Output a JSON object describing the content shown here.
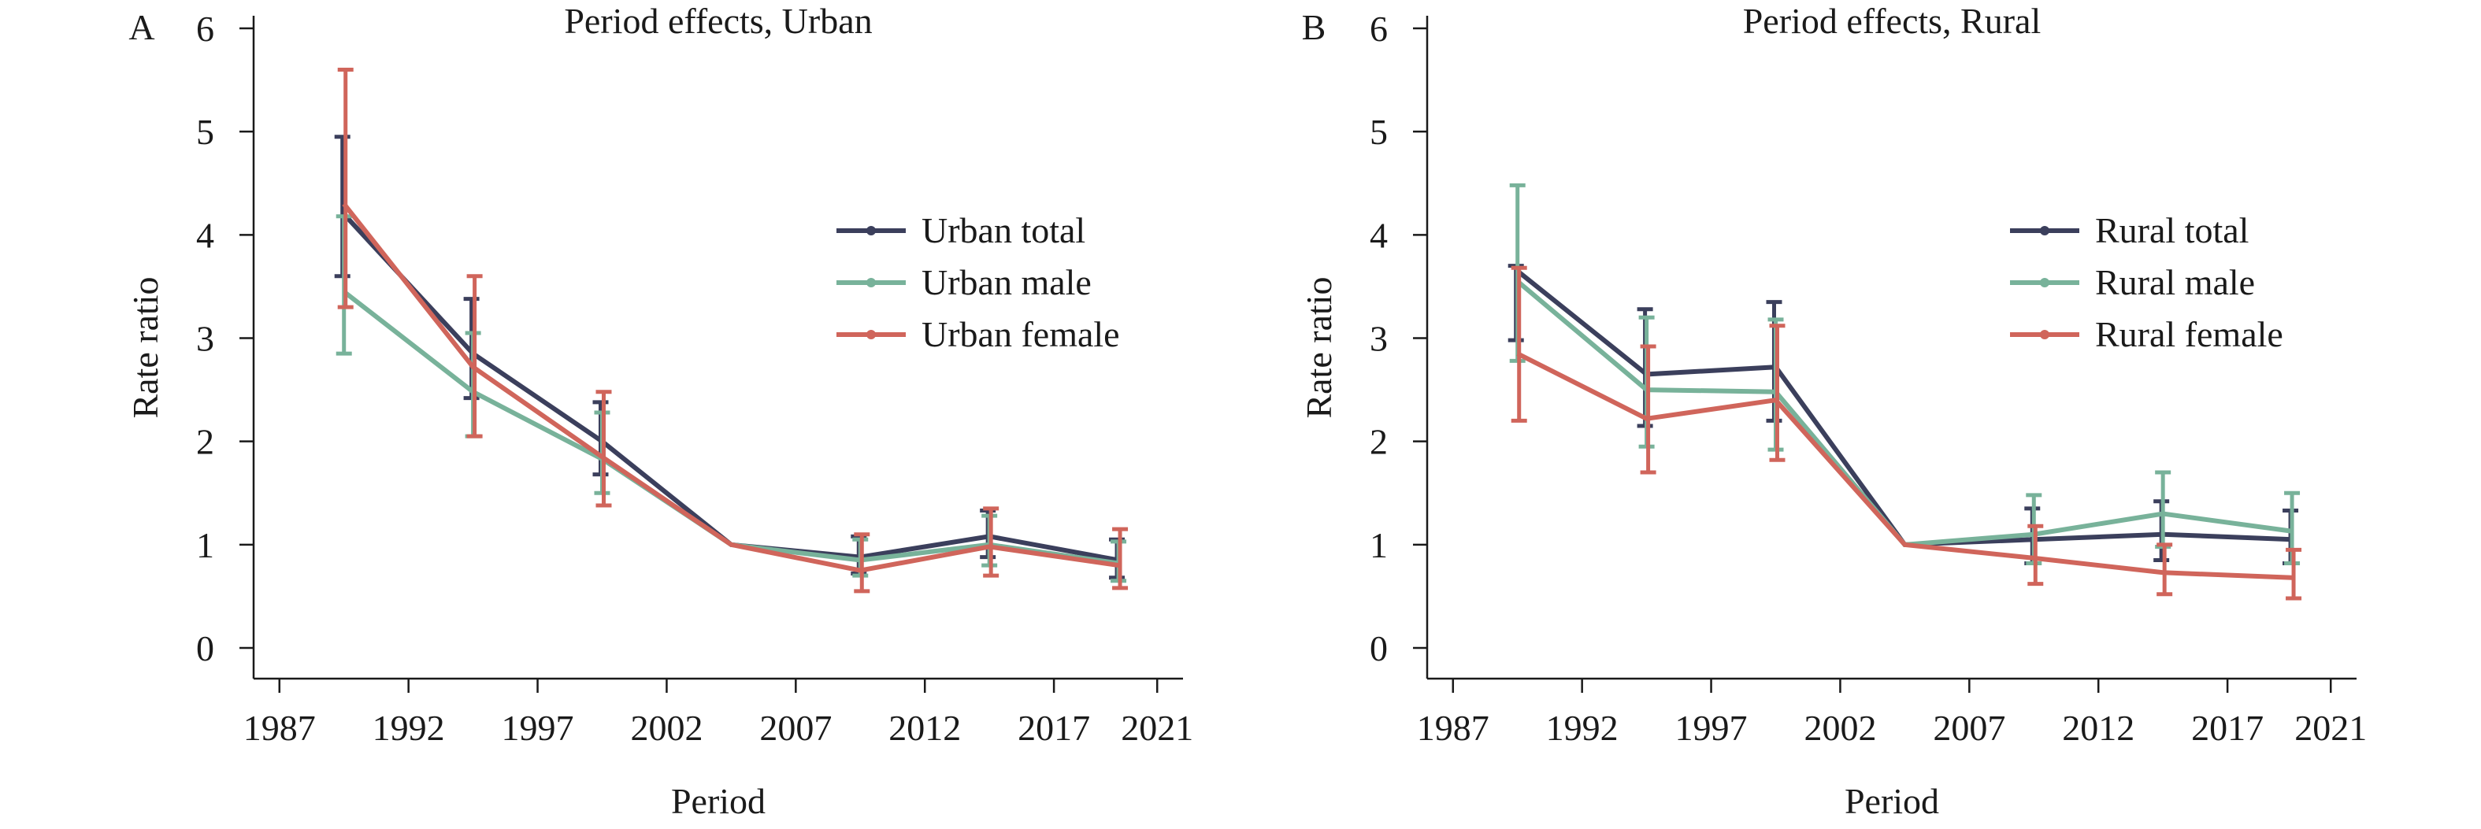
{
  "colors": {
    "total": "#3b3f5c",
    "male": "#78b29a",
    "female": "#d0655b",
    "axis": "#1a1a1a"
  },
  "chart_data": [
    {
      "type": "line",
      "panel_letter": "A",
      "title": "Period effects, Urban",
      "xlabel": "Period",
      "ylabel": "Rate ratio",
      "xlim": [
        1986,
        2022
      ],
      "ylim": [
        0,
        6
      ],
      "xticks": [
        1987,
        1992,
        1997,
        2002,
        2007,
        2012,
        2017,
        2021
      ],
      "yticks": [
        0,
        1,
        2,
        3,
        4,
        5,
        6
      ],
      "legend_position": "right",
      "x": [
        1989.5,
        1994.5,
        1999.5,
        2004.5,
        2009.5,
        2014.5,
        2019.5
      ],
      "series": [
        {
          "name": "Urban total",
          "color_key": "total",
          "values": [
            4.2,
            2.85,
            2.0,
            1.0,
            0.88,
            1.08,
            0.85
          ],
          "lower": [
            3.6,
            2.42,
            1.68,
            1.0,
            0.72,
            0.88,
            0.68
          ],
          "upper": [
            4.95,
            3.38,
            2.38,
            1.0,
            1.08,
            1.33,
            1.05
          ]
        },
        {
          "name": "Urban male",
          "color_key": "male",
          "values": [
            3.45,
            2.48,
            1.83,
            1.0,
            0.85,
            1.0,
            0.82
          ],
          "lower": [
            2.85,
            2.05,
            1.5,
            1.0,
            0.7,
            0.8,
            0.65
          ],
          "upper": [
            4.18,
            3.05,
            2.28,
            1.0,
            1.05,
            1.28,
            1.03
          ]
        },
        {
          "name": "Urban female",
          "color_key": "female",
          "values": [
            4.3,
            2.72,
            1.85,
            1.0,
            0.75,
            0.98,
            0.8
          ],
          "lower": [
            3.3,
            2.05,
            1.38,
            1.0,
            0.55,
            0.7,
            0.58
          ],
          "upper": [
            5.6,
            3.6,
            2.48,
            1.0,
            1.1,
            1.35,
            1.15
          ]
        }
      ]
    },
    {
      "type": "line",
      "panel_letter": "B",
      "title": "Period effects, Rural",
      "xlabel": "Period",
      "ylabel": "Rate ratio",
      "xlim": [
        1986,
        2022
      ],
      "ylim": [
        0,
        6
      ],
      "xticks": [
        1987,
        1992,
        1997,
        2002,
        2007,
        2012,
        2017,
        2021
      ],
      "yticks": [
        0,
        1,
        2,
        3,
        4,
        5,
        6
      ],
      "legend_position": "right",
      "x": [
        1989.5,
        1994.5,
        1999.5,
        2004.5,
        2009.5,
        2014.5,
        2019.5
      ],
      "series": [
        {
          "name": "Rural total",
          "color_key": "total",
          "values": [
            3.65,
            2.65,
            2.72,
            1.0,
            1.05,
            1.1,
            1.05
          ],
          "lower": [
            2.98,
            2.15,
            2.2,
            1.0,
            0.82,
            0.85,
            0.82
          ],
          "upper": [
            3.7,
            3.28,
            3.35,
            1.0,
            1.35,
            1.42,
            1.33
          ]
        },
        {
          "name": "Rural male",
          "color_key": "male",
          "values": [
            3.55,
            2.5,
            2.48,
            1.0,
            1.1,
            1.3,
            1.13
          ],
          "lower": [
            2.78,
            1.95,
            1.92,
            1.0,
            0.82,
            0.98,
            0.82
          ],
          "upper": [
            4.48,
            3.2,
            3.18,
            1.0,
            1.48,
            1.7,
            1.5
          ]
        },
        {
          "name": "Rural female",
          "color_key": "female",
          "values": [
            2.85,
            2.22,
            2.4,
            1.0,
            0.87,
            0.73,
            0.68
          ],
          "lower": [
            2.2,
            1.7,
            1.82,
            1.0,
            0.62,
            0.52,
            0.48
          ],
          "upper": [
            3.68,
            2.92,
            3.12,
            1.0,
            1.18,
            1.0,
            0.95
          ]
        }
      ]
    }
  ]
}
